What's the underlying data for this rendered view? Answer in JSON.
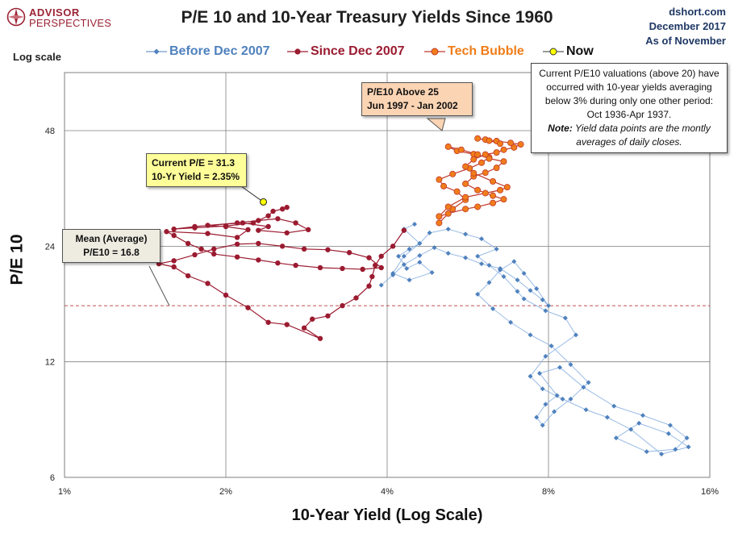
{
  "branding": {
    "logo_line1": "ADVISOR",
    "logo_line2": "PERSPECTIVES"
  },
  "header": {
    "title": "P/E 10 and 10-Year Treasury Yields Since 1960",
    "source_line1": "dshort.com",
    "source_line2": "December 2017",
    "source_line3": "As of November"
  },
  "scale_note": "Log scale",
  "callouts": {
    "tech_bubble_line1": "P/E10 Above 25",
    "tech_bubble_line2": "Jun 1997  - Jan 2002",
    "current_line1": "Current P/E = 31.3",
    "current_line2": "10-Yr Yield = 2.35%",
    "mean_line1": "Mean (Average)",
    "mean_line2": "P/E10 = 16.8"
  },
  "note": {
    "text": "Current P/E10 valuations  (above 20) have occurred with 10-year yields averaging below 3% during only one other period: Oct 1936-Apr 1937.",
    "note_label": "Note:",
    "note_text": " Yield data points are the montly averages of daily closes."
  },
  "colors": {
    "before": "#4f81bd",
    "since": "#9b1b30",
    "tech": "#f07d1a",
    "now": "#ffff00",
    "mean_line": "#c0504d",
    "grid": "#7f7f7f"
  },
  "chart_data": {
    "type": "scatter",
    "title": "P/E 10 and 10-Year Treasury Yields Since 1960",
    "xlabel": "10-Year Yield (Log Scale)",
    "ylabel": "P/E 10",
    "x_scale": "log",
    "y_scale": "log",
    "xlim": [
      1,
      16
    ],
    "ylim": [
      6,
      68
    ],
    "x_ticks": [
      1,
      2,
      4,
      8,
      16
    ],
    "x_tick_labels": [
      "1%",
      "2%",
      "4%",
      "8%",
      "16%"
    ],
    "y_ticks": [
      6,
      12,
      24,
      48
    ],
    "y_tick_labels": [
      "6",
      "12",
      "24",
      "48"
    ],
    "grid": true,
    "legend_position": "top",
    "mean_pe10": 16.8,
    "series": [
      {
        "name": "Before Dec 2007",
        "style": "line-diamond",
        "x": [
          3.9,
          4.1,
          4.3,
          4.6,
          4.9,
          5.2,
          5.6,
          6.0,
          6.5,
          7.0,
          7.4,
          7.8,
          8.0,
          7.6,
          7.2,
          6.9,
          6.5,
          6.2,
          5.9,
          6.3,
          6.8,
          7.4,
          8.1,
          8.8,
          9.5,
          8.8,
          8.2,
          7.8,
          7.6,
          7.9,
          8.3,
          7.7,
          8.4,
          9.3,
          10.6,
          12.0,
          13.5,
          14.5,
          13.8,
          12.2,
          10.7,
          11.8,
          13.4,
          14.6,
          13.0,
          11.4,
          10.3,
          9.4,
          8.5,
          7.8,
          7.4,
          7.9,
          9.0,
          8.6,
          7.9,
          7.2,
          7.0,
          6.6,
          6.2,
          5.9,
          6.4,
          6.0,
          5.6,
          5.2,
          4.8,
          4.6,
          4.4,
          4.2,
          4.35,
          4.6,
          4.85,
          4.4,
          4.1,
          4.3,
          4.6,
          4.3,
          4.5
        ],
        "y": [
          19.0,
          20.2,
          21.5,
          22.7,
          23.8,
          23.0,
          22.4,
          21.6,
          21.0,
          19.6,
          18.4,
          17.4,
          16.8,
          18.6,
          20.4,
          21.9,
          20.8,
          19.3,
          18.0,
          16.5,
          15.2,
          14.1,
          13.2,
          11.8,
          10.6,
          9.6,
          8.9,
          8.2,
          8.6,
          9.3,
          9.8,
          11.2,
          11.6,
          10.3,
          9.2,
          8.7,
          8.2,
          7.6,
          7.1,
          7.0,
          7.6,
          8.3,
          7.8,
          7.2,
          6.9,
          8.0,
          8.6,
          9.0,
          9.6,
          10.2,
          11.0,
          12.4,
          14.1,
          15.6,
          16.3,
          17.5,
          18.3,
          20.0,
          21.4,
          22.6,
          23.6,
          25.1,
          25.8,
          26.6,
          26.0,
          24.4,
          23.6,
          22.6,
          21.0,
          21.8,
          20.5,
          19.6,
          20.4,
          22.6,
          24.4,
          26.6,
          27.4
        ]
      },
      {
        "name": "Since Dec 2007",
        "style": "line-circle",
        "x": [
          4.3,
          4.1,
          3.9,
          3.8,
          3.75,
          3.7,
          3.5,
          3.3,
          3.1,
          2.9,
          2.8,
          3.0,
          2.6,
          2.4,
          2.2,
          2.0,
          1.85,
          1.7,
          1.6,
          1.5,
          1.6,
          1.75,
          1.9,
          2.1,
          2.3,
          2.55,
          2.8,
          3.1,
          3.4,
          3.7,
          3.9,
          3.6,
          3.3,
          3.0,
          2.7,
          2.5,
          2.3,
          2.1,
          1.9,
          1.8,
          1.7,
          1.6,
          1.55,
          1.85,
          2.1,
          2.2,
          2.0,
          1.85,
          2.15,
          2.4,
          2.3,
          2.6,
          2.85,
          2.7,
          2.5,
          2.3,
          2.1,
          1.75,
          1.6,
          1.75,
          2.0,
          2.25,
          2.4,
          2.45,
          2.55,
          2.6
        ],
        "y": [
          26.4,
          24.0,
          22.6,
          21.4,
          20.0,
          18.9,
          17.6,
          16.8,
          15.8,
          15.5,
          14.7,
          13.8,
          15.0,
          15.2,
          16.6,
          17.9,
          19.2,
          20.1,
          21.2,
          21.6,
          22.0,
          22.8,
          23.6,
          24.3,
          24.4,
          24.0,
          23.6,
          23.5,
          23.1,
          22.4,
          21.1,
          20.9,
          21.0,
          21.1,
          21.4,
          21.7,
          22.1,
          22.5,
          22.9,
          23.6,
          24.4,
          25.6,
          26.2,
          25.9,
          25.3,
          26.5,
          27.0,
          27.2,
          27.6,
          27.0,
          26.4,
          26.0,
          26.5,
          27.6,
          28.3,
          28.0,
          27.6,
          27.0,
          26.6,
          26.8,
          27.1,
          27.6,
          28.8,
          29.6,
          30.0,
          30.3
        ]
      },
      {
        "name": "Tech Bubble",
        "style": "line-circle",
        "x": [
          5.0,
          5.3,
          5.6,
          5.4,
          5.1,
          5.0,
          5.3,
          5.7,
          6.0,
          6.2,
          5.8,
          5.4,
          5.2,
          5.5,
          5.9,
          6.2,
          6.6,
          6.4,
          6.1,
          5.8,
          5.6,
          5.9,
          6.3,
          6.6,
          6.3,
          5.9,
          5.6,
          5.2,
          5.0,
          5.2,
          5.6,
          6.1,
          6.5,
          6.7,
          6.3,
          5.8,
          5.6,
          5.8,
          6.1,
          6.4,
          6.6,
          6.9,
          7.1,
          6.8,
          6.4,
          6.1,
          5.9,
          6.2,
          6.5
        ],
        "y": [
          27.6,
          30.0,
          31.7,
          33.3,
          34.4,
          35.8,
          37.0,
          38.3,
          39.6,
          40.9,
          41.7,
          42.5,
          43.6,
          42.8,
          41.6,
          40.6,
          39.9,
          38.4,
          37.3,
          36.5,
          34.9,
          33.6,
          32.5,
          31.8,
          31.1,
          30.4,
          30.0,
          29.2,
          28.7,
          30.4,
          32.2,
          33.0,
          33.6,
          34.2,
          35.4,
          37.2,
          38.7,
          40.4,
          41.6,
          42.1,
          42.8,
          43.4,
          44.2,
          44.6,
          45.1,
          45.5,
          45.8,
          45.2,
          44.4
        ]
      },
      {
        "name": "Now",
        "style": "point",
        "x": [
          2.35
        ],
        "y": [
          31.3
        ]
      }
    ]
  }
}
